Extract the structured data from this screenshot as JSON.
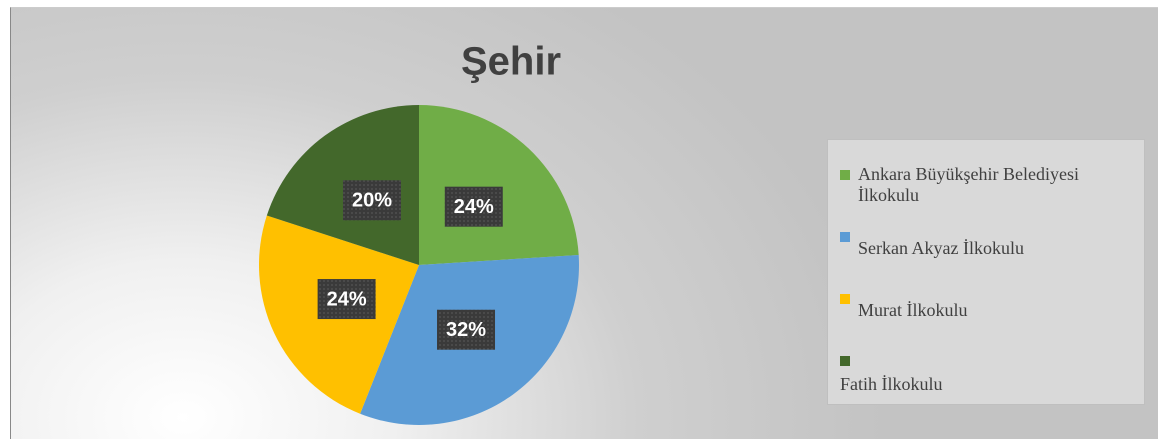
{
  "chart_data": {
    "type": "pie",
    "title": "Şehir",
    "categories": [
      "Ankara Büyükşehir Belediyesi İlkokulu",
      "Serkan Akyaz İlkokulu",
      "Murat İlkokulu",
      "Fatih İlkokulu"
    ],
    "values": [
      24,
      32,
      24,
      20
    ],
    "value_labels": [
      "24%",
      "32%",
      "24%",
      "20%"
    ],
    "colors": [
      "#70ad47",
      "#5b9bd5",
      "#ffc000",
      "#43682b"
    ],
    "legend": "right"
  }
}
